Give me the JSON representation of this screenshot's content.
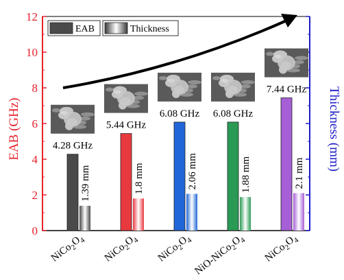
{
  "chart_data": {
    "type": "bar",
    "categories": [
      {
        "base": "NiCo",
        "sub1": "2",
        "mid": "O",
        "sub2": "4"
      },
      {
        "base": "NiCo",
        "sub1": "2",
        "mid": "O",
        "sub2": "4"
      },
      {
        "base": "NiCo",
        "sub1": "2",
        "mid": "O",
        "sub2": "4"
      },
      {
        "base": "NiO-NiCo",
        "sub1": "2",
        "mid": "O",
        "sub2": "4"
      },
      {
        "base": "NiCo",
        "sub1": "2",
        "mid": "O",
        "sub2": "4"
      }
    ],
    "series": [
      {
        "name": "EAB",
        "axis": "left",
        "values": [
          4.28,
          5.44,
          6.08,
          6.08,
          7.44
        ],
        "labels": [
          "4.28 GHz",
          "5.44 GHz",
          "6.08 GHz",
          "6.08 GHz",
          "7.44 GHz"
        ]
      },
      {
        "name": "Thickness",
        "axis": "right",
        "values": [
          1.39,
          1.8,
          2.06,
          1.88,
          2.1
        ],
        "labels": [
          "1.39 mm",
          "1.8 mm",
          "2.06 mm",
          "1.88 mm",
          "2.1 mm"
        ]
      }
    ],
    "bar_colors": [
      "#4a4a4a",
      "#e8393f",
      "#2166d8",
      "#2a9a55",
      "#a65fd6"
    ],
    "ylabel": "EAB (GHz)",
    "ylabel_color": "#e8202a",
    "y2label": "Thickness (mm)",
    "y2label_color": "#1b1bc8",
    "ylim": [
      0,
      12
    ],
    "yticks": [
      0,
      2,
      4,
      6,
      8,
      10,
      12
    ],
    "legend_position": "top-left",
    "annotation": "increasing trend arrow",
    "insets": "SEM micrographs above each EAB bar"
  }
}
